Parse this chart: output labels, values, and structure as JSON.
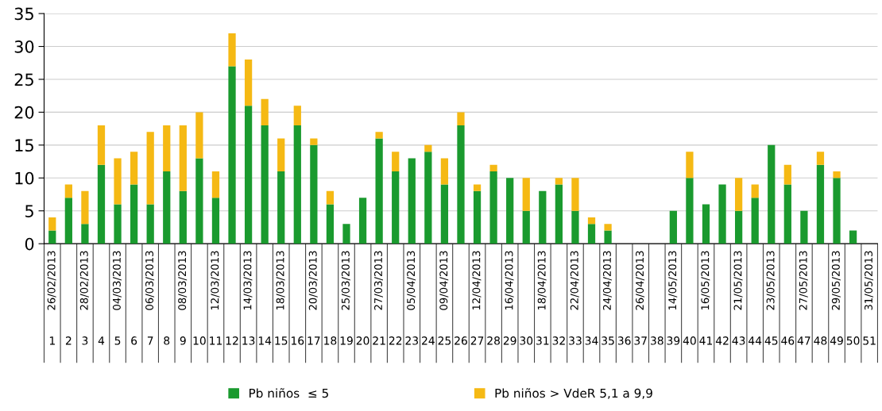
{
  "chart_data": {
    "type": "bar",
    "stacked": true,
    "categories": [
      "26/02/2013",
      null,
      "28/02/2013",
      null,
      "04/03/2013",
      null,
      "06/03/2013",
      null,
      "08/03/2013",
      null,
      "12/03/2013",
      null,
      "14/03/2013",
      null,
      "18/03/2013",
      null,
      "20/03/2013",
      null,
      "25/03/2013",
      null,
      "27/03/2013",
      null,
      "05/04/2013",
      null,
      "09/04/2013",
      null,
      "12/04/2013",
      null,
      "16/04/2013",
      null,
      "18/04/2013",
      null,
      "22/04/2013",
      null,
      "24/04/2013",
      null,
      "26/04/2013",
      null,
      "14/05/2013",
      null,
      "16/05/2013",
      null,
      "21/05/2013",
      null,
      "23/05/2013",
      null,
      "27/05/2013",
      null,
      "29/05/2013",
      null,
      "31/05/2013"
    ],
    "series": [
      {
        "name": "Pb niños  ≤ 5",
        "color": "#1a9a2e",
        "values": [
          2,
          7,
          3,
          12,
          6,
          9,
          6,
          11,
          8,
          13,
          7,
          27,
          21,
          18,
          11,
          18,
          15,
          6,
          3,
          7,
          16,
          11,
          13,
          14,
          9,
          18,
          8,
          11,
          10,
          5,
          8,
          9,
          5,
          3,
          2,
          0,
          0,
          0,
          5,
          10,
          6,
          9,
          5,
          7,
          15,
          9,
          5,
          12,
          10,
          2,
          0
        ]
      },
      {
        "name": "Pb niños > VdeR 5,1 a 9,9",
        "color": "#f5b914",
        "values": [
          2,
          2,
          5,
          6,
          7,
          5,
          11,
          7,
          10,
          7,
          4,
          5,
          7,
          4,
          5,
          3,
          1,
          2,
          0,
          0,
          1,
          3,
          0,
          1,
          4,
          2,
          1,
          1,
          0,
          5,
          0,
          1,
          5,
          1,
          1,
          0,
          0,
          0,
          0,
          4,
          0,
          0,
          5,
          2,
          0,
          3,
          0,
          2,
          1,
          0,
          0
        ]
      }
    ],
    "ylim": [
      0,
      35
    ],
    "yticks": [
      0,
      5,
      10,
      15,
      20,
      25,
      30,
      35
    ],
    "grid": "y",
    "legend": "bottom",
    "x2lim": [
      0.5,
      51.5
    ],
    "x2ticks": [
      1,
      2,
      3,
      4,
      5,
      6,
      7,
      8,
      9,
      10,
      11,
      12,
      13,
      14,
      15,
      16,
      17,
      18,
      19,
      20,
      21,
      22,
      23,
      24,
      25,
      26,
      27,
      28,
      29,
      30,
      31,
      32,
      33,
      34,
      35,
      36,
      37,
      38,
      39,
      40,
      41,
      42,
      43,
      44,
      45,
      46,
      47,
      48,
      49,
      50,
      51
    ]
  }
}
